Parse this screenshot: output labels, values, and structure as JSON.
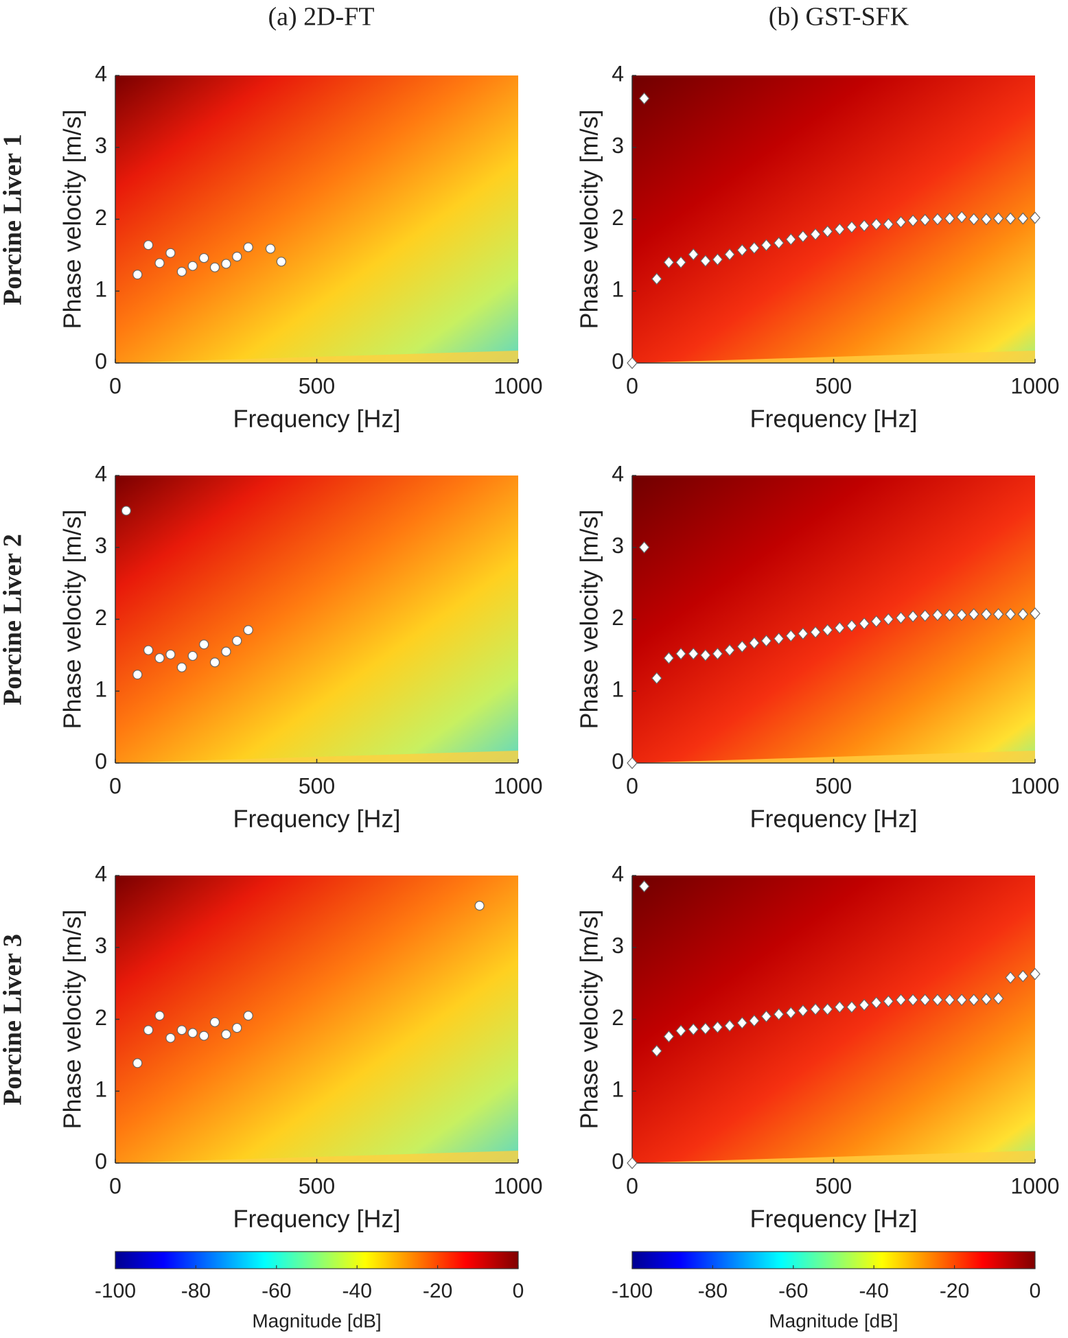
{
  "column_titles": [
    "(a) 2D-FT",
    "(b) GST-SFK"
  ],
  "row_labels": [
    "Porcine Liver 1",
    "Porcine Liver 2",
    "Porcine Liver 3"
  ],
  "chart_data": [
    {
      "type": "scatter",
      "marker": "circle",
      "color": "#ffffff",
      "xlabel": "Frequency [Hz]",
      "ylabel": "Phase velocity [m/s]",
      "xlim": [
        0,
        1000
      ],
      "ylim": [
        0,
        4
      ],
      "xticks": [
        0,
        500,
        1000
      ],
      "yticks": [
        0,
        1,
        2,
        3,
        4
      ],
      "x": [
        55,
        82,
        110,
        137,
        165,
        192,
        220,
        247,
        275,
        302,
        330,
        385,
        412
      ],
      "values": [
        1.23,
        1.64,
        1.39,
        1.53,
        1.27,
        1.35,
        1.46,
        1.33,
        1.38,
        1.48,
        1.61,
        1.59,
        1.41
      ]
    },
    {
      "type": "scatter",
      "marker": "diamond",
      "color": "#ffffff",
      "xlabel": "Frequency [Hz]",
      "ylabel": "Phase velocity [m/s]",
      "xlim": [
        0,
        1000
      ],
      "ylim": [
        0,
        4
      ],
      "xticks": [
        0,
        500,
        1000
      ],
      "yticks": [
        0,
        1,
        2,
        3,
        4
      ],
      "x": [
        0,
        30,
        61,
        91,
        121,
        152,
        182,
        212,
        242,
        273,
        303,
        333,
        364,
        394,
        424,
        455,
        485,
        515,
        545,
        576,
        606,
        636,
        667,
        697,
        727,
        758,
        788,
        818,
        848,
        879,
        909,
        939,
        970,
        1000
      ],
      "values": [
        0,
        3.68,
        1.17,
        1.4,
        1.4,
        1.51,
        1.42,
        1.44,
        1.51,
        1.57,
        1.6,
        1.64,
        1.67,
        1.72,
        1.76,
        1.79,
        1.83,
        1.86,
        1.89,
        1.91,
        1.93,
        1.93,
        1.96,
        1.98,
        1.99,
        2.0,
        2.01,
        2.03,
        2.0,
        2.0,
        2.01,
        2.01,
        2.01,
        2.02
      ]
    },
    {
      "type": "scatter",
      "marker": "circle",
      "color": "#ffffff",
      "xlabel": "Frequency [Hz]",
      "ylabel": "Phase velocity [m/s]",
      "xlim": [
        0,
        1000
      ],
      "ylim": [
        0,
        4
      ],
      "xticks": [
        0,
        500,
        1000
      ],
      "yticks": [
        0,
        1,
        2,
        3,
        4
      ],
      "x": [
        27,
        55,
        82,
        110,
        137,
        165,
        192,
        220,
        247,
        275,
        302,
        330
      ],
      "values": [
        3.51,
        1.23,
        1.57,
        1.46,
        1.51,
        1.33,
        1.49,
        1.65,
        1.4,
        1.55,
        1.7,
        1.85
      ]
    },
    {
      "type": "scatter",
      "marker": "diamond",
      "color": "#ffffff",
      "xlabel": "Frequency [Hz]",
      "ylabel": "Phase velocity [m/s]",
      "xlim": [
        0,
        1000
      ],
      "ylim": [
        0,
        4
      ],
      "xticks": [
        0,
        500,
        1000
      ],
      "yticks": [
        0,
        1,
        2,
        3,
        4
      ],
      "x": [
        0,
        30,
        61,
        91,
        121,
        152,
        182,
        212,
        242,
        273,
        303,
        333,
        364,
        394,
        424,
        455,
        485,
        515,
        545,
        576,
        606,
        636,
        667,
        697,
        727,
        758,
        788,
        818,
        848,
        879,
        909,
        939,
        970,
        1000
      ],
      "values": [
        0,
        3.0,
        1.18,
        1.46,
        1.52,
        1.52,
        1.5,
        1.52,
        1.57,
        1.62,
        1.67,
        1.7,
        1.73,
        1.77,
        1.8,
        1.82,
        1.85,
        1.88,
        1.91,
        1.94,
        1.97,
        2.0,
        2.02,
        2.04,
        2.05,
        2.06,
        2.06,
        2.06,
        2.07,
        2.07,
        2.07,
        2.07,
        2.07,
        2.08
      ]
    },
    {
      "type": "scatter",
      "marker": "circle",
      "color": "#ffffff",
      "xlabel": "Frequency [Hz]",
      "ylabel": "Phase velocity [m/s]",
      "xlim": [
        0,
        1000
      ],
      "ylim": [
        0,
        4
      ],
      "xticks": [
        0,
        500,
        1000
      ],
      "yticks": [
        0,
        1,
        2,
        3,
        4
      ],
      "x": [
        55,
        82,
        110,
        137,
        165,
        192,
        220,
        247,
        275,
        302,
        330,
        904
      ],
      "values": [
        1.39,
        1.85,
        2.05,
        1.74,
        1.85,
        1.81,
        1.77,
        1.96,
        1.79,
        1.88,
        2.05,
        3.58
      ]
    },
    {
      "type": "scatter",
      "marker": "diamond",
      "color": "#ffffff",
      "xlabel": "Frequency [Hz]",
      "ylabel": "Phase velocity [m/s]",
      "xlim": [
        0,
        1000
      ],
      "ylim": [
        0,
        4
      ],
      "xticks": [
        0,
        500,
        1000
      ],
      "yticks": [
        0,
        1,
        2,
        3,
        4
      ],
      "x": [
        0,
        30,
        61,
        91,
        121,
        152,
        182,
        212,
        242,
        273,
        303,
        333,
        364,
        394,
        424,
        455,
        485,
        515,
        545,
        576,
        606,
        636,
        667,
        697,
        727,
        758,
        788,
        818,
        848,
        879,
        909,
        939,
        970,
        1000
      ],
      "values": [
        0,
        3.85,
        1.56,
        1.76,
        1.84,
        1.86,
        1.87,
        1.89,
        1.91,
        1.95,
        1.98,
        2.04,
        2.07,
        2.09,
        2.12,
        2.14,
        2.14,
        2.17,
        2.17,
        2.2,
        2.23,
        2.25,
        2.27,
        2.27,
        2.27,
        2.27,
        2.27,
        2.27,
        2.27,
        2.28,
        2.29,
        2.58,
        2.6,
        2.63
      ]
    },
    {
      "type": "colorbar",
      "xlabel": "Magnitude [dB]",
      "xlim": [
        -100,
        0
      ],
      "xticks": [
        -100,
        -80,
        -60,
        -40,
        -20,
        0
      ]
    },
    {
      "type": "colorbar",
      "xlabel": "Magnitude [dB]",
      "xlim": [
        -100,
        0
      ],
      "xticks": [
        -100,
        -80,
        -60,
        -40,
        -20,
        0
      ]
    }
  ]
}
